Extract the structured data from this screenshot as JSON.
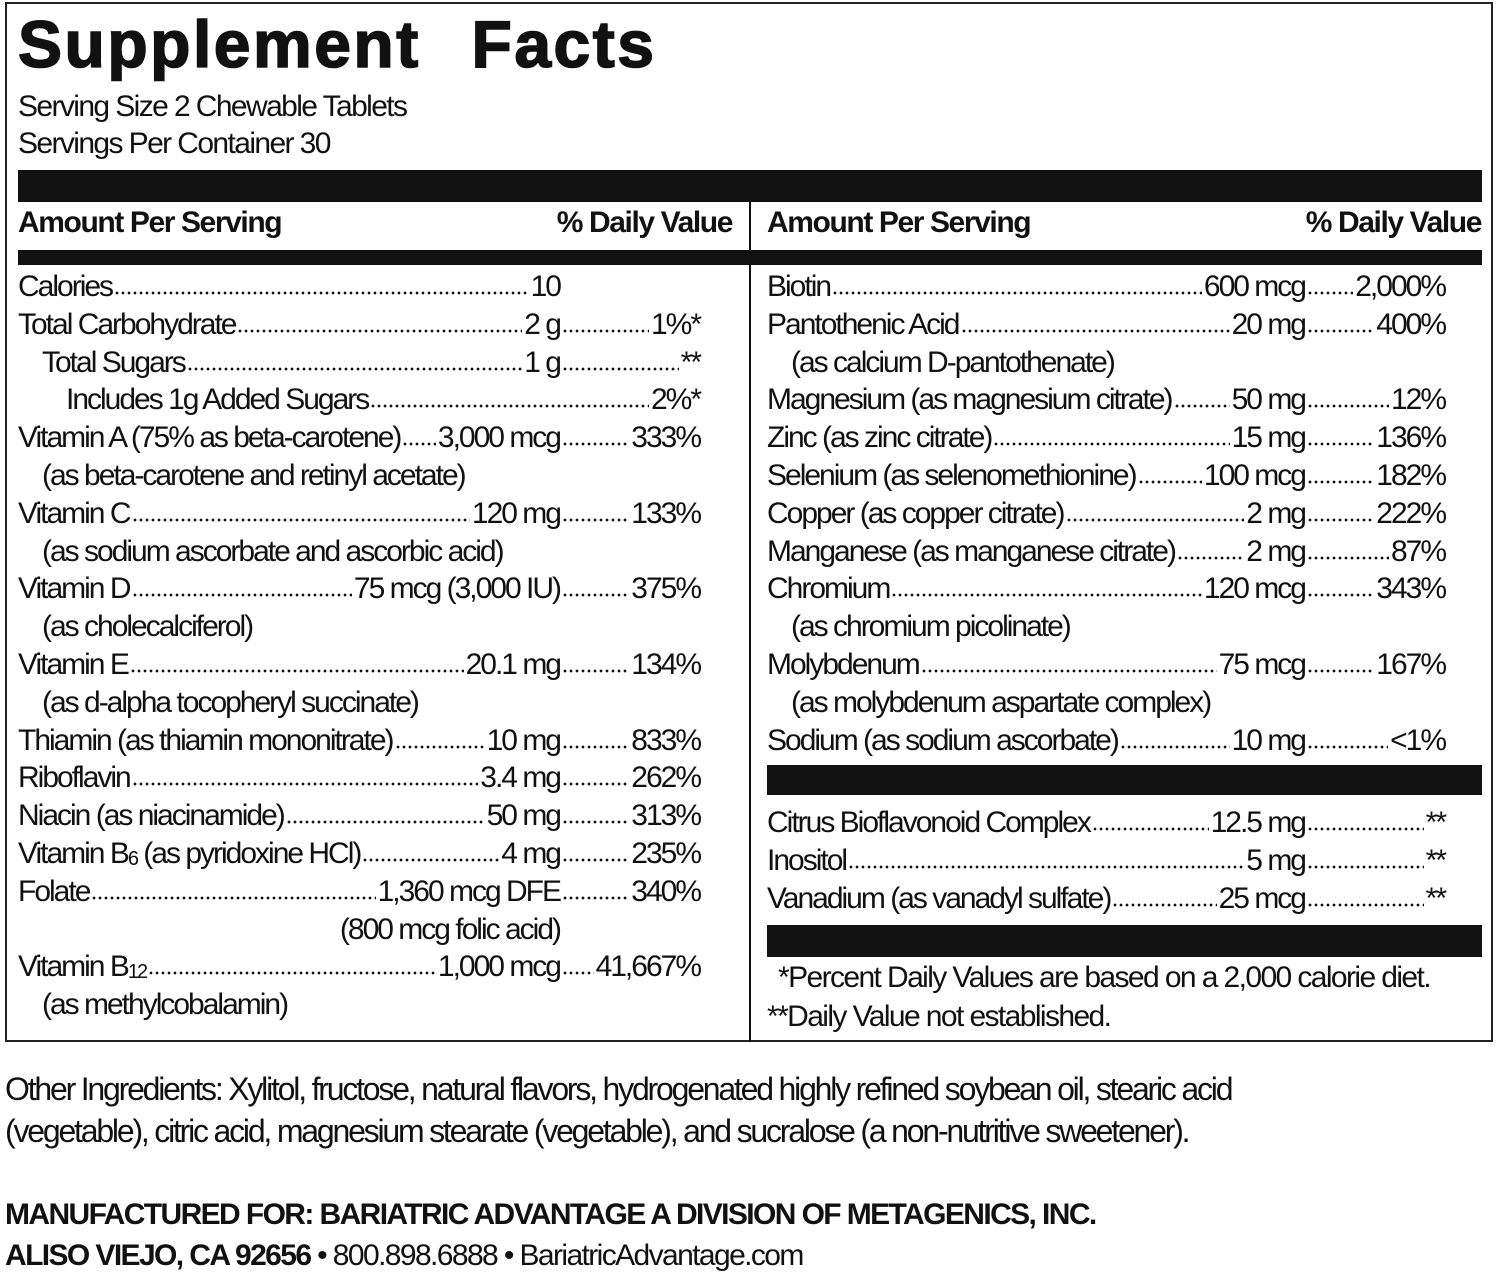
{
  "title": "Supplement  Facts",
  "serving_size": "Serving Size 2 Chewable Tablets",
  "servings_per_container": "Servings Per Container 30",
  "header": {
    "amount": "Amount Per Serving",
    "dv": "% Daily Value"
  },
  "left_rows": [
    {
      "name": "Calories",
      "amount": "10",
      "no_dv": true
    },
    {
      "name": "Total Carbohydrate",
      "amount": "2 g",
      "dv": "1%*"
    },
    {
      "name": "Total Sugars ",
      "amount": "1 g",
      "dv": "**",
      "indent": 1
    },
    {
      "name": "Includes 1g Added Sugars ",
      "dv": "2%*",
      "indent": 2
    },
    {
      "name": "Vitamin A (75% as beta-carotene)",
      "amount": "3,000 mcg",
      "dv": "333%",
      "cont": "(as beta-carotene and retinyl acetate)"
    },
    {
      "name": "Vitamin C ",
      "amount": "120 mg",
      "dv": "133%",
      "cont": "(as sodium ascorbate and ascorbic acid)"
    },
    {
      "name": "Vitamin D ",
      "amount": "75 mcg (3,000 IU) ",
      "dv": "375%",
      "cont": "(as cholecalciferol)"
    },
    {
      "name": "Vitamin E",
      "amount": "20.1 mg",
      "dv": "134%",
      "cont": "(as d-alpha tocopheryl succinate)"
    },
    {
      "name": "Thiamin (as thiamin mononitrate)",
      "amount": "10 mg",
      "dv": "833%"
    },
    {
      "name": "Riboflavin ",
      "amount": "3.4 mg",
      "dv": "262%"
    },
    {
      "name": "Niacin (as niacinamide) ",
      "amount": "50 mg",
      "dv": "313%"
    },
    {
      "name": "Vitamin B",
      "sub": "6",
      "name_tail": " (as pyridoxine HCl)",
      "amount": "4 mg",
      "dv": "235%"
    },
    {
      "name": "Folate",
      "amount": "1,360 mcg DFE",
      "dv": "340%",
      "amount_note": "(800 mcg folic acid)"
    },
    {
      "name": "Vitamin B",
      "sub": "12",
      "name_tail": " ",
      "amount": "1,000 mcg",
      "dv": "41,667%",
      "cont": "(as methylcobalamin)"
    }
  ],
  "right_rows": [
    {
      "name": "Biotin ",
      "amount": "600 mcg",
      "dv": "2,000%"
    },
    {
      "name": "Pantothenic Acid",
      "amount": "20 mg",
      "dv": "400%",
      "cont": "(as calcium D-pantothenate)"
    },
    {
      "name": "Magnesium (as magnesium citrate)",
      "amount": "50 mg",
      "dv": "12%"
    },
    {
      "name": "Zinc (as zinc citrate)",
      "amount": "15 mg",
      "dv": "136%"
    },
    {
      "name": "Selenium (as selenomethionine) ",
      "amount": "100 mcg",
      "dv": "182%"
    },
    {
      "name": "Copper (as copper citrate)",
      "amount": "2 mg",
      "dv": "222%"
    },
    {
      "name": "Manganese (as manganese citrate)",
      "amount": "2 mg",
      "dv": "87%"
    },
    {
      "name": "Chromium",
      "amount": "120 mcg",
      "dv": "343%",
      "cont": "(as chromium picolinate)"
    },
    {
      "name": "Molybdenum  ",
      "amount": "75 mcg",
      "dv": "167%",
      "cont": "(as molybdenum aspartate complex)"
    },
    {
      "name": "Sodium (as sodium ascorbate) ",
      "amount": "10 mg",
      "dv": "<1%"
    }
  ],
  "other_rows": [
    {
      "name": "Citrus Bioflavonoid Complex",
      "amount": "12.5 mg",
      "dv": "**"
    },
    {
      "name": "Inositol ",
      "amount": "5 mg",
      "dv": "**"
    },
    {
      "name": "Vanadium (as vanadyl sulfate) ",
      "amount": "25 mcg",
      "dv": "**"
    }
  ],
  "footnotes": [
    "*Percent Daily Values are based on a 2,000 calorie diet.",
    "**Daily Value not established."
  ],
  "other_ingredients_lines": [
    "Other Ingredients: Xylitol, fructose, natural flavors, hydrogenated highly refined soybean oil, stearic acid",
    "(vegetable), citric acid, magnesium stearate (vegetable), and sucralose (a non-nutritive sweetener)."
  ],
  "manufacturer": {
    "line1": "MANUFACTURED FOR: BARIATRIC ADVANTAGE A DIVISION OF METAGENICS, INC.",
    "address": "ALISO VIEJO, CA 92656",
    "contact": " • 800.898.6888 • BariatricAdvantage.com"
  }
}
